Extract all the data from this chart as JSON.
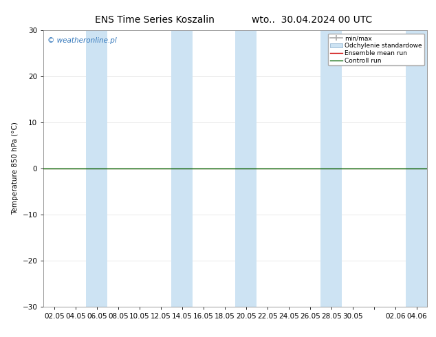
{
  "title_left": "ENS Time Series Koszalin",
  "title_right": "wto..  30.04.2024 00 UTC",
  "ylabel": "Temperature 850 hPa (°C)",
  "ylim": [
    -30,
    30
  ],
  "yticks": [
    -30,
    -20,
    -10,
    0,
    10,
    20,
    30
  ],
  "x_tick_labels": [
    "02.05",
    "04.05",
    "06.05",
    "08.05",
    "10.05",
    "12.05",
    "14.05",
    "16.05",
    "18.05",
    "20.05",
    "22.05",
    "24.05",
    "26.05",
    "28.05",
    "30.05",
    "",
    "02.06",
    "04.06"
  ],
  "x_tick_positions": [
    0,
    2,
    4,
    6,
    8,
    10,
    12,
    14,
    16,
    18,
    20,
    22,
    24,
    26,
    28,
    30,
    32,
    34
  ],
  "xlim": [
    -1,
    35
  ],
  "shaded_bands": [
    {
      "x_start": 3.0,
      "x_end": 5.0
    },
    {
      "x_start": 11.0,
      "x_end": 13.0
    },
    {
      "x_start": 17.0,
      "x_end": 19.0
    },
    {
      "x_start": 25.0,
      "x_end": 27.0
    },
    {
      "x_start": 33.0,
      "x_end": 35.5
    }
  ],
  "shaded_color": "#cde3f3",
  "control_run_y": 0,
  "ensemble_mean_y": 0,
  "control_run_color": "#006400",
  "ensemble_mean_color": "#cc0000",
  "min_max_color": "#aaaaaa",
  "std_dev_color": "#cde3f3",
  "std_dev_edge_color": "#99b8d4",
  "watermark_text": "© weatheronline.pl",
  "watermark_color": "#3377bb",
  "background_color": "#ffffff",
  "legend_fontsize": 6.5,
  "axis_fontsize": 7.5,
  "title_fontsize": 10,
  "zero_line_color": "#000000",
  "grid_color": "#e0e0e0"
}
